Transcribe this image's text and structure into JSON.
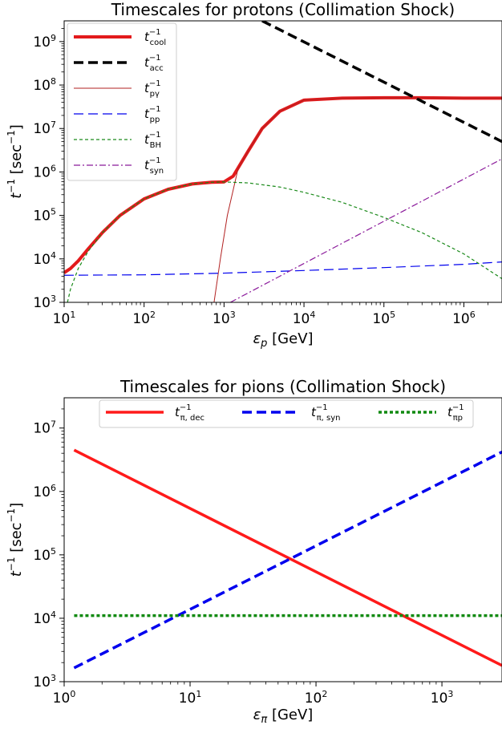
{
  "chart_data": [
    {
      "type": "line",
      "title": "Timescales for protons (Collimation Shock)",
      "xlabel": "ε_p [GeV]",
      "ylabel": "t^-1 [sec^-1]",
      "xscale": "log",
      "yscale": "log",
      "xlim": [
        10,
        3000000
      ],
      "ylim": [
        1000,
        3000000000
      ],
      "legend_position": "top-left",
      "x_ticks": [
        {
          "b": "10",
          "e": "1"
        },
        {
          "b": "10",
          "e": "2"
        },
        {
          "b": "10",
          "e": "3"
        },
        {
          "b": "10",
          "e": "4"
        },
        {
          "b": "10",
          "e": "5"
        },
        {
          "b": "10",
          "e": "6"
        }
      ],
      "y_ticks": [
        {
          "b": "10",
          "e": "3"
        },
        {
          "b": "10",
          "e": "4"
        },
        {
          "b": "10",
          "e": "5"
        },
        {
          "b": "10",
          "e": "6"
        },
        {
          "b": "10",
          "e": "7"
        },
        {
          "b": "10",
          "e": "8"
        },
        {
          "b": "10",
          "e": "9"
        }
      ],
      "series": [
        {
          "name": "t_cool^-1",
          "legend": {
            "base": "t",
            "sup": "−1",
            "sub": "cool"
          },
          "color": "#e31a1c",
          "style": "solid",
          "width": 4,
          "points": [
            [
              10,
              4800
            ],
            [
              12,
              6000
            ],
            [
              15,
              9000
            ],
            [
              20,
              17000
            ],
            [
              30,
              40000
            ],
            [
              50,
              100000
            ],
            [
              100,
              240000
            ],
            [
              200,
              400000
            ],
            [
              400,
              530000
            ],
            [
              700,
              580000
            ],
            [
              1000,
              590000
            ],
            [
              1300,
              800000
            ],
            [
              2000,
              3000000
            ],
            [
              3000,
              10000000
            ],
            [
              5000,
              25000000
            ],
            [
              10000,
              45000000
            ],
            [
              30000,
              50000000
            ],
            [
              100000,
              51000000
            ],
            [
              300000,
              51000000
            ],
            [
              1000000,
              50000000
            ],
            [
              3000000,
              50000000
            ]
          ]
        },
        {
          "name": "t_acc^-1",
          "legend": {
            "base": "t",
            "sup": "−1",
            "sub": "acc"
          },
          "color": "#000000",
          "style": "dashed",
          "width": 3.5,
          "points": [
            [
              3000,
              3000000000
            ],
            [
              3000000,
              5000000
            ]
          ]
        },
        {
          "name": "t_pγ^-1",
          "legend": {
            "base": "t",
            "sup": "−1",
            "sub": "pγ"
          },
          "color": "#b22222",
          "style": "solid",
          "width": 1,
          "points": [
            [
              750,
              1000
            ],
            [
              900,
              10000
            ],
            [
              1100,
              100000
            ],
            [
              1500,
              1200000
            ],
            [
              2000,
              3000000
            ],
            [
              3000,
              10000000
            ],
            [
              5000,
              25000000
            ],
            [
              10000,
              45000000
            ],
            [
              30000,
              50000000
            ],
            [
              100000,
              51000000
            ],
            [
              300000,
              51000000
            ],
            [
              1000000,
              50000000
            ],
            [
              3000000,
              50000000
            ]
          ]
        },
        {
          "name": "t_pp^-1",
          "legend": {
            "base": "t",
            "sup": "−1",
            "sub": "pp"
          },
          "color": "#0000ee",
          "style": "dashed",
          "width": 1.2,
          "points": [
            [
              10,
              4200
            ],
            [
              100,
              4300
            ],
            [
              1000,
              4700
            ],
            [
              10000,
              5400
            ],
            [
              100000,
              6300
            ],
            [
              1000000,
              7500
            ],
            [
              3000000,
              8500
            ]
          ]
        },
        {
          "name": "t_BH^-1",
          "legend": {
            "base": "t",
            "sup": "−1",
            "sub": "BH"
          },
          "color": "#1a8a1a",
          "style": "dotted",
          "width": 1.2,
          "points": [
            [
              11,
              1000
            ],
            [
              12,
              2000
            ],
            [
              15,
              6000
            ],
            [
              20,
              15000
            ],
            [
              30,
              40000
            ],
            [
              50,
              100000
            ],
            [
              100,
              240000
            ],
            [
              200,
              400000
            ],
            [
              400,
              530000
            ],
            [
              700,
              580000
            ],
            [
              1000,
              590000
            ],
            [
              2000,
              560000
            ],
            [
              5000,
              450000
            ],
            [
              10000,
              340000
            ],
            [
              30000,
              200000
            ],
            [
              100000,
              90000
            ],
            [
              300000,
              40000
            ],
            [
              1000000,
              13000
            ],
            [
              3000000,
              3500
            ]
          ]
        },
        {
          "name": "t_syn^-1",
          "legend": {
            "base": "t",
            "sup": "−1",
            "sub": "syn"
          },
          "color": "#8b1a9b",
          "style": "dashdot",
          "width": 1.2,
          "points": [
            [
              1200,
              1000
            ],
            [
              3000000,
              2000000
            ]
          ]
        }
      ]
    },
    {
      "type": "line",
      "title": "Timescales for pions (Collimation Shock)",
      "xlabel": "ε_π [GeV]",
      "ylabel": "t^-1 [sec^-1]",
      "xscale": "log",
      "yscale": "log",
      "xlim": [
        1,
        3000
      ],
      "ylim": [
        1000,
        30000000
      ],
      "legend_position": "top-center",
      "x_ticks": [
        {
          "b": "10",
          "e": "0"
        },
        {
          "b": "10",
          "e": "1"
        },
        {
          "b": "10",
          "e": "2"
        },
        {
          "b": "10",
          "e": "3"
        }
      ],
      "y_ticks": [
        {
          "b": "10",
          "e": "3"
        },
        {
          "b": "10",
          "e": "4"
        },
        {
          "b": "10",
          "e": "5"
        },
        {
          "b": "10",
          "e": "6"
        },
        {
          "b": "10",
          "e": "7"
        }
      ],
      "series": [
        {
          "name": "t_π,dec^-1",
          "legend": {
            "base": "t",
            "sup": "−1",
            "sub": "π, dec"
          },
          "color": "#ff1a1a",
          "style": "solid",
          "width": 3.5,
          "points": [
            [
              1.2,
              4500000
            ],
            [
              3000,
              1800
            ]
          ]
        },
        {
          "name": "t_π,syn^-1",
          "legend": {
            "base": "t",
            "sup": "−1",
            "sub": "π, syn"
          },
          "color": "#0000ee",
          "style": "dashed",
          "width": 3.5,
          "points": [
            [
              1.2,
              1650
            ],
            [
              3000,
              4200000
            ]
          ]
        },
        {
          "name": "t_πp^-1",
          "legend": {
            "base": "t",
            "sup": "−1",
            "sub": "πp"
          },
          "color": "#118a11",
          "style": "dotted",
          "width": 3.5,
          "points": [
            [
              1.2,
              11000
            ],
            [
              3000,
              11000
            ]
          ]
        }
      ]
    }
  ]
}
